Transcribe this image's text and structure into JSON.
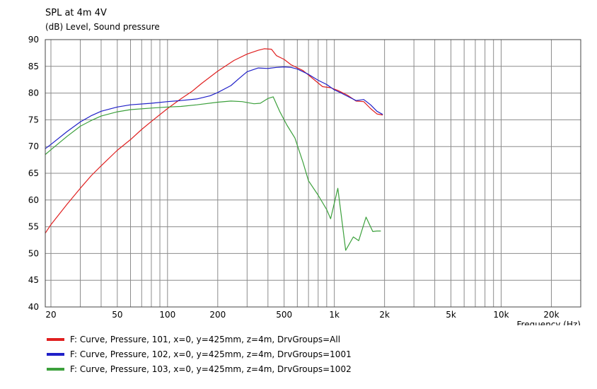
{
  "chart_data": {
    "type": "line",
    "title": "SPL at 4m 4V",
    "subtitle": "(dB)  Level, Sound pressure",
    "xlabel": "Frequency  (Hz)",
    "x_scale": "log",
    "xlim": [
      18.5,
      30000
    ],
    "ylim": [
      40,
      90
    ],
    "grid": true,
    "legend_placement": "bottom-left",
    "y_ticks": [
      90,
      85,
      80,
      75,
      70,
      65,
      60,
      55,
      50,
      45,
      40
    ],
    "x_tick_labels": [
      {
        "x": 20,
        "label": "20"
      },
      {
        "x": 50,
        "label": "50"
      },
      {
        "x": 100,
        "label": "100"
      },
      {
        "x": 200,
        "label": "200"
      },
      {
        "x": 500,
        "label": "500"
      },
      {
        "x": 1000,
        "label": "1k"
      },
      {
        "x": 2000,
        "label": "2k"
      },
      {
        "x": 5000,
        "label": "5k"
      },
      {
        "x": 10000,
        "label": "10k"
      },
      {
        "x": 20000,
        "label": "20k"
      }
    ],
    "series": [
      {
        "name": "F: Curve, Pressure, 101, x=0, y=425mm, z=4m, DrvGroups=All",
        "color": "#e02020",
        "points": [
          [
            18.5,
            53.8
          ],
          [
            20,
            55.4
          ],
          [
            25,
            59.2
          ],
          [
            30,
            62.2
          ],
          [
            35,
            64.6
          ],
          [
            40,
            66.4
          ],
          [
            50,
            69.3
          ],
          [
            60,
            71.3
          ],
          [
            70,
            73.2
          ],
          [
            80,
            74.7
          ],
          [
            100,
            77.1
          ],
          [
            120,
            78.9
          ],
          [
            140,
            80.3
          ],
          [
            160,
            81.8
          ],
          [
            200,
            84.1
          ],
          [
            250,
            86.1
          ],
          [
            300,
            87.3
          ],
          [
            350,
            88.0
          ],
          [
            380,
            88.3
          ],
          [
            420,
            88.2
          ],
          [
            450,
            87.0
          ],
          [
            500,
            86.3
          ],
          [
            550,
            85.3
          ],
          [
            650,
            84.2
          ],
          [
            750,
            82.6
          ],
          [
            850,
            81.2
          ],
          [
            950,
            81.0
          ],
          [
            1050,
            80.5
          ],
          [
            1200,
            79.6
          ],
          [
            1350,
            78.5
          ],
          [
            1500,
            78.4
          ],
          [
            1650,
            77.1
          ],
          [
            1800,
            76.1
          ],
          [
            1950,
            75.9
          ]
        ]
      },
      {
        "name": "F: Curve, Pressure, 102, x=0, y=425mm, z=4m, DrvGroups=1001",
        "color": "#2020c8",
        "points": [
          [
            18.5,
            69.6
          ],
          [
            20,
            70.4
          ],
          [
            25,
            72.8
          ],
          [
            30,
            74.6
          ],
          [
            35,
            75.8
          ],
          [
            40,
            76.6
          ],
          [
            50,
            77.4
          ],
          [
            60,
            77.8
          ],
          [
            80,
            78.1
          ],
          [
            100,
            78.4
          ],
          [
            120,
            78.6
          ],
          [
            150,
            78.9
          ],
          [
            180,
            79.5
          ],
          [
            200,
            80.1
          ],
          [
            240,
            81.4
          ],
          [
            270,
            82.8
          ],
          [
            300,
            84.0
          ],
          [
            350,
            84.7
          ],
          [
            400,
            84.6
          ],
          [
            450,
            84.8
          ],
          [
            500,
            84.9
          ],
          [
            550,
            84.8
          ],
          [
            600,
            84.5
          ],
          [
            700,
            83.5
          ],
          [
            800,
            82.4
          ],
          [
            900,
            81.6
          ],
          [
            1000,
            80.6
          ],
          [
            1100,
            80.0
          ],
          [
            1200,
            79.4
          ],
          [
            1350,
            78.6
          ],
          [
            1500,
            78.8
          ],
          [
            1650,
            77.8
          ],
          [
            1800,
            76.6
          ],
          [
            1950,
            76.0
          ]
        ]
      },
      {
        "name": "F: Curve, Pressure, 103, x=0, y=425mm, z=4m, DrvGroups=1002",
        "color": "#3ca03c",
        "points": [
          [
            18.5,
            68.5
          ],
          [
            20,
            69.4
          ],
          [
            25,
            71.9
          ],
          [
            30,
            73.8
          ],
          [
            35,
            74.9
          ],
          [
            40,
            75.7
          ],
          [
            50,
            76.5
          ],
          [
            60,
            76.9
          ],
          [
            80,
            77.2
          ],
          [
            100,
            77.4
          ],
          [
            120,
            77.5
          ],
          [
            150,
            77.8
          ],
          [
            200,
            78.3
          ],
          [
            240,
            78.5
          ],
          [
            280,
            78.4
          ],
          [
            330,
            78.0
          ],
          [
            360,
            78.1
          ],
          [
            400,
            79.0
          ],
          [
            430,
            79.3
          ],
          [
            470,
            76.6
          ],
          [
            520,
            74.0
          ],
          [
            580,
            71.6
          ],
          [
            650,
            67.0
          ],
          [
            700,
            63.6
          ],
          [
            800,
            60.9
          ],
          [
            900,
            58.2
          ],
          [
            950,
            56.5
          ],
          [
            1050,
            62.2
          ],
          [
            1170,
            50.6
          ],
          [
            1300,
            53.1
          ],
          [
            1400,
            52.4
          ],
          [
            1550,
            56.8
          ],
          [
            1700,
            54.1
          ],
          [
            1800,
            54.2
          ],
          [
            1900,
            54.2
          ]
        ]
      }
    ]
  }
}
